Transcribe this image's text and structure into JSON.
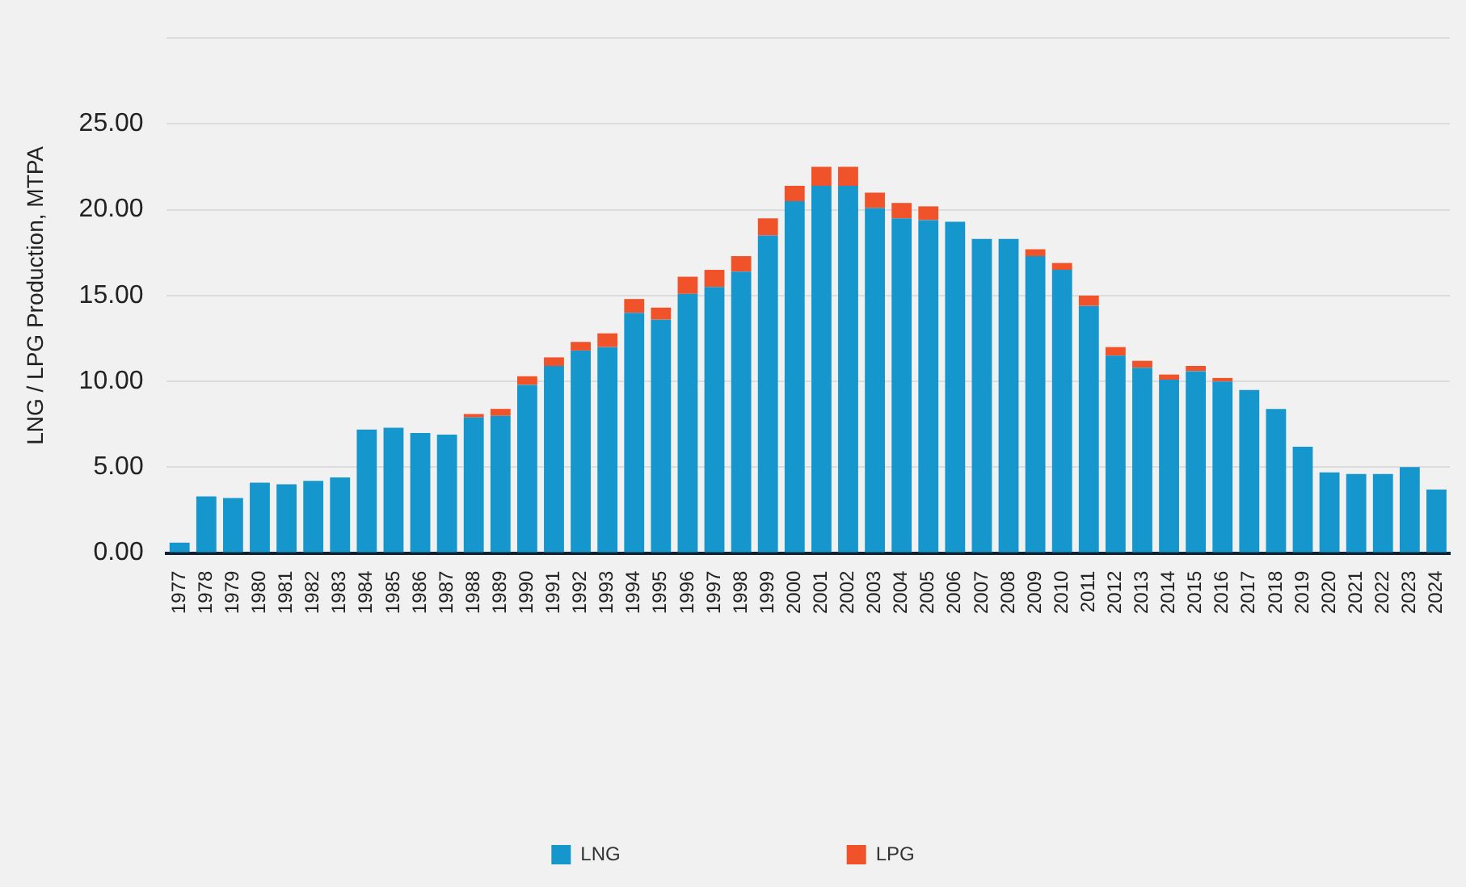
{
  "chart_data": {
    "type": "bar",
    "ylabel": "LNG / LPG Production, MTPA",
    "stacked": true,
    "categories": [
      "1977",
      "1978",
      "1979",
      "1980",
      "1981",
      "1982",
      "1983",
      "1984",
      "1985",
      "1986",
      "1987",
      "1988",
      "1989",
      "1990",
      "1991",
      "1992",
      "1993",
      "1994",
      "1995",
      "1996",
      "1997",
      "1998",
      "1999",
      "2000",
      "2001",
      "2002",
      "2003",
      "2004",
      "2005",
      "2006",
      "2007",
      "2008",
      "2009",
      "2010",
      "2011",
      "2012",
      "2013",
      "2014",
      "2015",
      "2016",
      "2017",
      "2018",
      "2019",
      "2020",
      "2021",
      "2022",
      "2023",
      "2024"
    ],
    "series": [
      {
        "name": "LNG",
        "color": "#1596cc",
        "values": [
          0.6,
          3.3,
          3.2,
          4.1,
          4.0,
          4.2,
          4.4,
          7.2,
          7.3,
          7.0,
          6.9,
          7.9,
          8.0,
          9.8,
          10.9,
          11.8,
          12.0,
          14.0,
          13.6,
          15.1,
          15.5,
          16.4,
          18.5,
          20.5,
          21.4,
          21.4,
          20.1,
          19.5,
          19.4,
          19.3,
          18.3,
          18.3,
          17.3,
          16.5,
          14.4,
          11.5,
          10.8,
          10.1,
          10.6,
          10.0,
          9.5,
          8.4,
          6.2,
          4.7,
          4.6,
          4.6,
          5.0,
          3.7
        ]
      },
      {
        "name": "LPG",
        "color": "#f0522a",
        "values": [
          0,
          0,
          0,
          0,
          0,
          0,
          0,
          0,
          0,
          0,
          0,
          0.2,
          0.4,
          0.5,
          0.5,
          0.5,
          0.8,
          0.8,
          0.7,
          1.0,
          1.0,
          0.9,
          1.0,
          0.9,
          1.1,
          1.1,
          0.9,
          0.9,
          0.8,
          0,
          0,
          0,
          0.4,
          0.4,
          0.6,
          0.5,
          0.4,
          0.3,
          0.3,
          0.2,
          0,
          0,
          0,
          0,
          0,
          0,
          0,
          0
        ]
      }
    ],
    "ylim": [
      0,
      30
    ],
    "yticks": [
      {
        "value": 0,
        "label": "0.00"
      },
      {
        "value": 5,
        "label": "5.00"
      },
      {
        "value": 10,
        "label": "10.00"
      },
      {
        "value": 15,
        "label": "15.00"
      },
      {
        "value": 20,
        "label": "20.00"
      },
      {
        "value": 25,
        "label": "25.00"
      },
      {
        "value": 30,
        "label": null
      }
    ],
    "grid": "y",
    "legend": "bottom"
  }
}
